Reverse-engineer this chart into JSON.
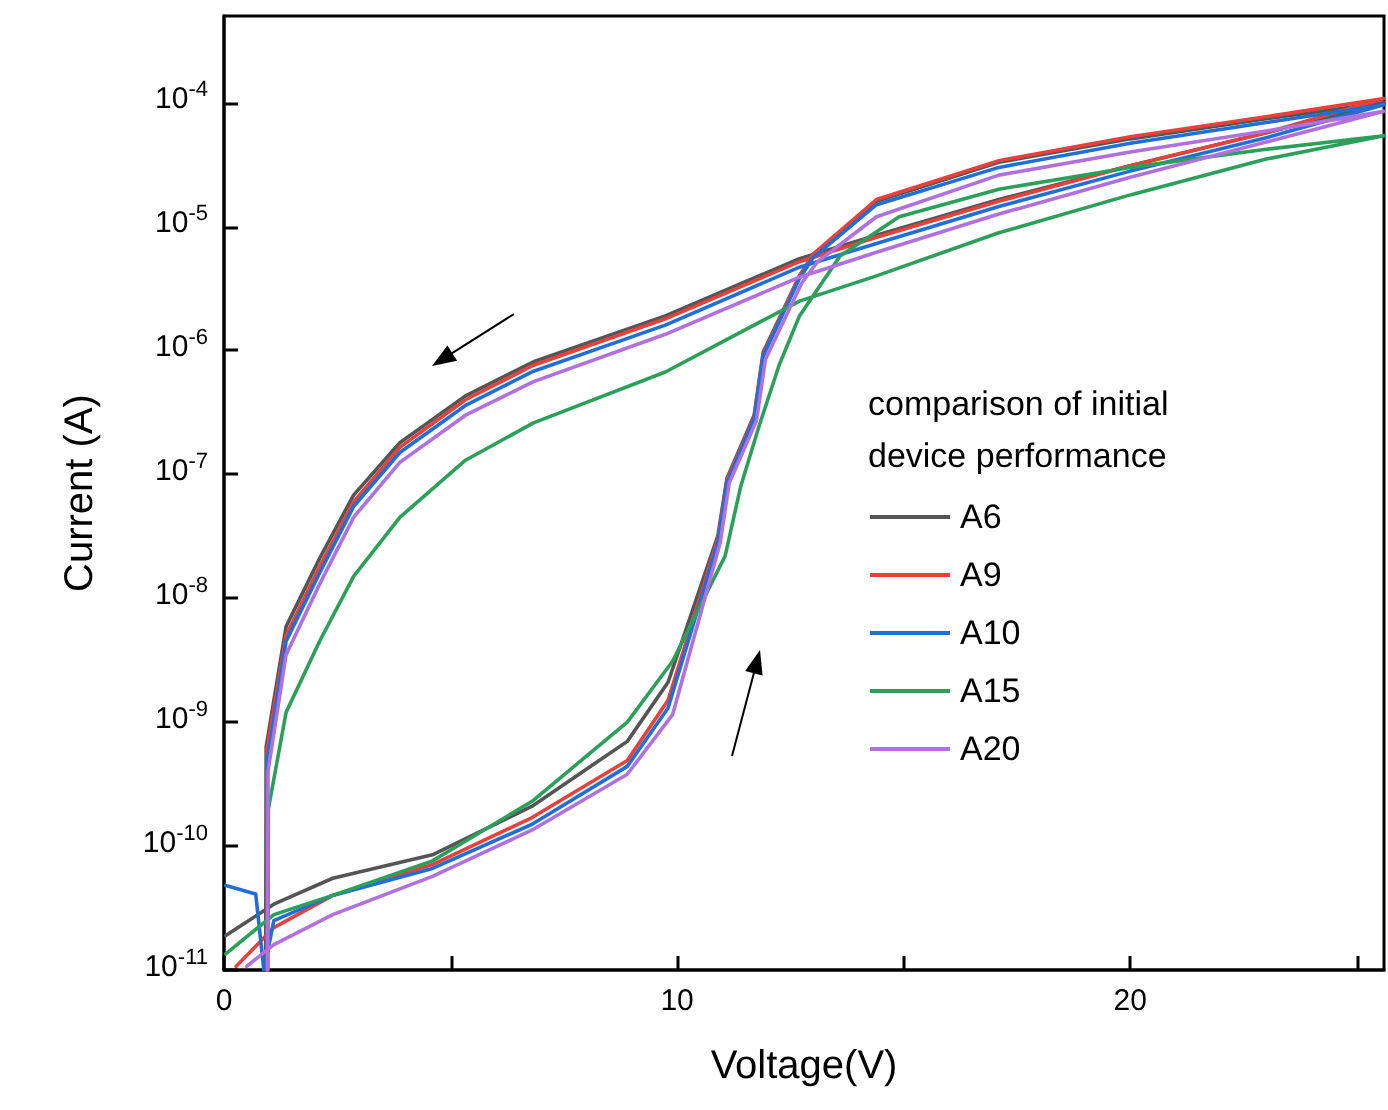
{
  "chart_data": {
    "type": "line",
    "xlabel": "Voltage(V)",
    "ylabel": "Current (A)",
    "legend_title": "comparison of initial device performance",
    "legend": "right",
    "log": "y",
    "grid": false,
    "marker": "none",
    "line_style": "solid",
    "xlim": [
      0,
      25.6
    ],
    "xticks": [
      0,
      {
        "value": 5,
        "label": null
      },
      10,
      {
        "value": 15,
        "label": null
      },
      20,
      {
        "value": 25,
        "label": null
      }
    ],
    "ylim": [
      1e-11,
      0.0005
    ],
    "yticks": [
      {
        "value": 1e-11,
        "label": "10$^{-11}$"
      },
      {
        "value": 1e-10,
        "label": "10$^{-10}$"
      },
      {
        "value": 1e-09,
        "label": "10$^{-9}$"
      },
      {
        "value": 1e-08,
        "label": "10$^{-8}$"
      },
      {
        "value": 1e-07,
        "label": "10$^{-7}$"
      },
      {
        "value": 1e-06,
        "label": "10$^{-6}$"
      },
      {
        "value": 1e-05,
        "label": "10$^{-5}$"
      },
      {
        "value": 0.0001,
        "label": "10$^{-4}$"
      }
    ],
    "series": [
      {
        "name": "A6",
        "color": "#555555",
        "x": [
          0.04,
          1.1,
          2.4,
          4.6,
          6.8,
          8.9,
          9.8,
          10.9,
          11.1,
          11.7,
          11.9,
          12.7,
          13.0,
          14.4,
          17.1,
          20,
          23,
          25.6,
          23,
          20,
          17.1,
          14.4,
          12.7,
          9.74,
          6.83,
          5.33,
          3.88,
          2.86,
          2.11,
          1.37,
          0.93,
          0.92
        ],
        "values": [
          1.9e-11,
          3.4e-11,
          5.5e-11,
          8.5e-11,
          2.1e-10,
          7e-10,
          2.1e-09,
          3.2e-08,
          9.3e-08,
          3e-07,
          9.7e-07,
          4e-06,
          5.8e-06,
          1.6e-05,
          3.3e-05,
          5.1e-05,
          7.4e-05,
          0.0001,
          5.7e-05,
          3.1e-05,
          1.65e-05,
          8.5e-06,
          5.5e-06,
          1.9e-06,
          8.1e-07,
          4.3e-07,
          1.8e-07,
          6.8e-08,
          2.1e-08,
          5.9e-09,
          6.3e-10,
          1e-11
        ]
      },
      {
        "name": "A9",
        "color": "#e8403a",
        "x": [
          0.27,
          1.1,
          2.4,
          4.6,
          6.8,
          8.9,
          9.8,
          10.9,
          11.1,
          11.7,
          11.9,
          12.7,
          13.0,
          14.4,
          17.1,
          20,
          23,
          25.6,
          23,
          20,
          17.1,
          14.4,
          12.7,
          9.74,
          6.83,
          5.33,
          3.88,
          2.86,
          2.11,
          1.37,
          0.95,
          0.94
        ],
        "values": [
          1.07e-11,
          2.2e-11,
          4e-11,
          7.1e-11,
          1.7e-10,
          4.9e-10,
          1.5e-09,
          3e-08,
          9e-08,
          2.9e-07,
          9.3e-07,
          4e-06,
          6e-06,
          1.65e-05,
          3.4e-05,
          5.3e-05,
          7.7e-05,
          0.000108,
          5.7e-05,
          3.1e-05,
          1.6e-05,
          8.2e-06,
          5.2e-06,
          1.8e-06,
          7.6e-07,
          4e-07,
          1.65e-07,
          6e-08,
          1.8e-08,
          5e-09,
          6e-10,
          1e-11
        ]
      },
      {
        "name": "A10",
        "color": "#1f6fd6",
        "x": [
          0.04,
          0.7,
          0.88,
          1.1,
          2.4,
          4.6,
          6.8,
          8.9,
          9.8,
          10.9,
          11.1,
          11.7,
          11.9,
          12.7,
          13.0,
          14.4,
          17.1,
          20,
          23,
          25.6,
          23,
          20,
          17.1,
          14.4,
          12.7,
          9.74,
          6.83,
          5.33,
          3.88,
          2.86,
          2.11,
          1.37,
          0.96,
          0.95
        ],
        "values": [
          4.8e-11,
          4.1e-11,
          1e-11,
          2.5e-11,
          4e-11,
          6.6e-11,
          1.5e-10,
          4.4e-10,
          1.3e-09,
          2.8e-08,
          8.5e-08,
          2.8e-07,
          9e-07,
          3.8e-06,
          5.6e-06,
          1.5e-05,
          3e-05,
          4.7e-05,
          6.9e-05,
          9.6e-05,
          5.2e-05,
          2.8e-05,
          1.45e-05,
          7.3e-06,
          4.7e-06,
          1.6e-06,
          6.8e-07,
          3.6e-07,
          1.5e-07,
          5.5e-08,
          1.6e-08,
          4.5e-09,
          5e-10,
          1e-11
        ]
      },
      {
        "name": "A15",
        "color": "#2ca05a",
        "x": [
          0.04,
          1.1,
          2.4,
          4.6,
          6.8,
          8.9,
          9.9,
          11.06,
          11.4,
          11.8,
          12.25,
          12.7,
          13.6,
          14.9,
          17.1,
          20,
          23,
          25.6,
          23,
          20,
          17.1,
          14.4,
          12.7,
          9.74,
          6.83,
          5.33,
          3.88,
          2.86,
          2.11,
          1.37,
          0.98,
          0.97
        ],
        "values": [
          1.35e-11,
          2.8e-11,
          4e-11,
          7.6e-11,
          2.3e-10,
          1e-09,
          3.1e-09,
          2.2e-08,
          7.9e-08,
          2.4e-07,
          7.6e-07,
          1.9e-06,
          5.8e-06,
          1.2e-05,
          2e-05,
          3e-05,
          4.2e-05,
          5.4e-05,
          3.5e-05,
          1.8e-05,
          8.9e-06,
          4e-06,
          2.5e-06,
          6.7e-07,
          2.6e-07,
          1.3e-07,
          4.5e-08,
          1.5e-08,
          4.5e-09,
          1.2e-09,
          2e-10,
          1e-11
        ]
      },
      {
        "name": "A20",
        "color": "#b070e0",
        "x": [
          0.5,
          1.1,
          2.4,
          4.6,
          6.8,
          8.9,
          9.9,
          10.95,
          11.15,
          11.75,
          11.95,
          12.75,
          13.1,
          14.4,
          17.1,
          20,
          23,
          25.6,
          23,
          20,
          17.1,
          14.4,
          12.7,
          9.74,
          6.83,
          5.33,
          3.88,
          2.86,
          2.11,
          1.37,
          0.97,
          0.96
        ],
        "values": [
          1.07e-11,
          1.6e-11,
          2.8e-11,
          5.7e-11,
          1.35e-10,
          3.8e-10,
          1.15e-09,
          2.8e-08,
          8.5e-08,
          2.7e-07,
          8.5e-07,
          3.5e-06,
          5.2e-06,
          1.2e-05,
          2.6e-05,
          4e-05,
          5.9e-05,
          8.5e-05,
          4.8e-05,
          2.5e-05,
          1.26e-05,
          6.2e-06,
          3.9e-06,
          1.35e-06,
          5.6e-07,
          3e-07,
          1.25e-07,
          4.5e-08,
          1.3e-08,
          3.5e-09,
          4e-10,
          1e-11
        ]
      }
    ]
  }
}
